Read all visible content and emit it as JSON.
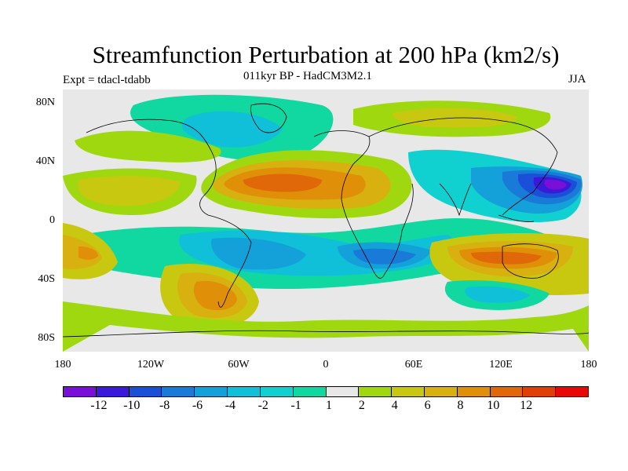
{
  "title": "Streamfunction Perturbation at 200 hPa (km2/s)",
  "subtitle": "011kyr BP - HadCM3M2.1",
  "left_label": "Expt = tdacl-tdabb",
  "right_label": "JJA",
  "lat_labels": [
    "80N",
    "40N",
    "0",
    "40S",
    "80S"
  ],
  "lon_labels": [
    "180",
    "120W",
    "60W",
    "0",
    "60E",
    "120E",
    "180"
  ],
  "colorbar": {
    "labels": [
      "-12",
      "-10",
      "-8",
      "-6",
      "-4",
      "-2",
      "-1",
      "1",
      "2",
      "4",
      "6",
      "8",
      "10",
      "12"
    ],
    "colors": [
      "#7a10d8",
      "#3a1ad8",
      "#1a50d8",
      "#1a7ad8",
      "#14a0d8",
      "#10c0d8",
      "#10d0d0",
      "#10d8a0",
      "#e8e8e8",
      "#a0d810",
      "#c8c810",
      "#d8b010",
      "#e09008",
      "#e06808",
      "#e04008",
      "#e80808"
    ]
  },
  "palette": {
    "neutral": "#e8e8e8",
    "land_line": "#000000"
  }
}
